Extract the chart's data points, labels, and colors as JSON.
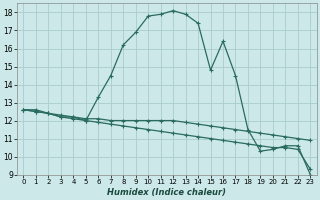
{
  "title": "",
  "xlabel": "Humidex (Indice chaleur)",
  "ylabel": "",
  "background_color": "#cce8e8",
  "grid_color": "#aacccc",
  "line_color": "#2a6b60",
  "xlim": [
    -0.5,
    23.5
  ],
  "ylim": [
    9,
    18.5
  ],
  "xticks": [
    0,
    1,
    2,
    3,
    4,
    5,
    6,
    7,
    8,
    9,
    10,
    11,
    12,
    13,
    14,
    15,
    16,
    17,
    18,
    19,
    20,
    21,
    22,
    23
  ],
  "yticks": [
    9,
    10,
    11,
    12,
    13,
    14,
    15,
    16,
    17,
    18
  ],
  "series": [
    {
      "x": [
        0,
        1,
        2,
        3,
        4,
        5,
        6,
        7,
        8,
        9,
        10,
        11,
        12,
        13,
        14,
        15,
        16,
        17,
        18,
        19,
        20,
        21,
        22,
        23
      ],
      "y": [
        12.6,
        12.6,
        12.4,
        12.2,
        12.2,
        12.0,
        13.3,
        14.5,
        16.2,
        16.9,
        17.8,
        17.9,
        18.1,
        17.9,
        17.4,
        14.8,
        16.4,
        14.5,
        11.5,
        10.3,
        10.4,
        10.6,
        10.6,
        9.0
      ]
    },
    {
      "x": [
        0,
        1,
        2,
        3,
        4,
        5,
        6,
        7,
        8,
        9,
        10,
        11,
        12,
        13,
        14,
        15,
        16,
        17,
        18,
        19,
        20,
        21,
        22,
        23
      ],
      "y": [
        12.6,
        12.5,
        12.4,
        12.3,
        12.2,
        12.1,
        12.1,
        12.0,
        12.0,
        12.0,
        12.0,
        12.0,
        12.0,
        11.9,
        11.8,
        11.7,
        11.6,
        11.5,
        11.4,
        11.3,
        11.2,
        11.1,
        11.0,
        10.9
      ]
    },
    {
      "x": [
        0,
        1,
        2,
        3,
        4,
        5,
        6,
        7,
        8,
        9,
        10,
        11,
        12,
        13,
        14,
        15,
        16,
        17,
        18,
        19,
        20,
        21,
        22,
        23
      ],
      "y": [
        12.6,
        12.5,
        12.4,
        12.2,
        12.1,
        12.0,
        11.9,
        11.8,
        11.7,
        11.6,
        11.5,
        11.4,
        11.3,
        11.2,
        11.1,
        11.0,
        10.9,
        10.8,
        10.7,
        10.6,
        10.5,
        10.5,
        10.4,
        9.3
      ]
    }
  ]
}
